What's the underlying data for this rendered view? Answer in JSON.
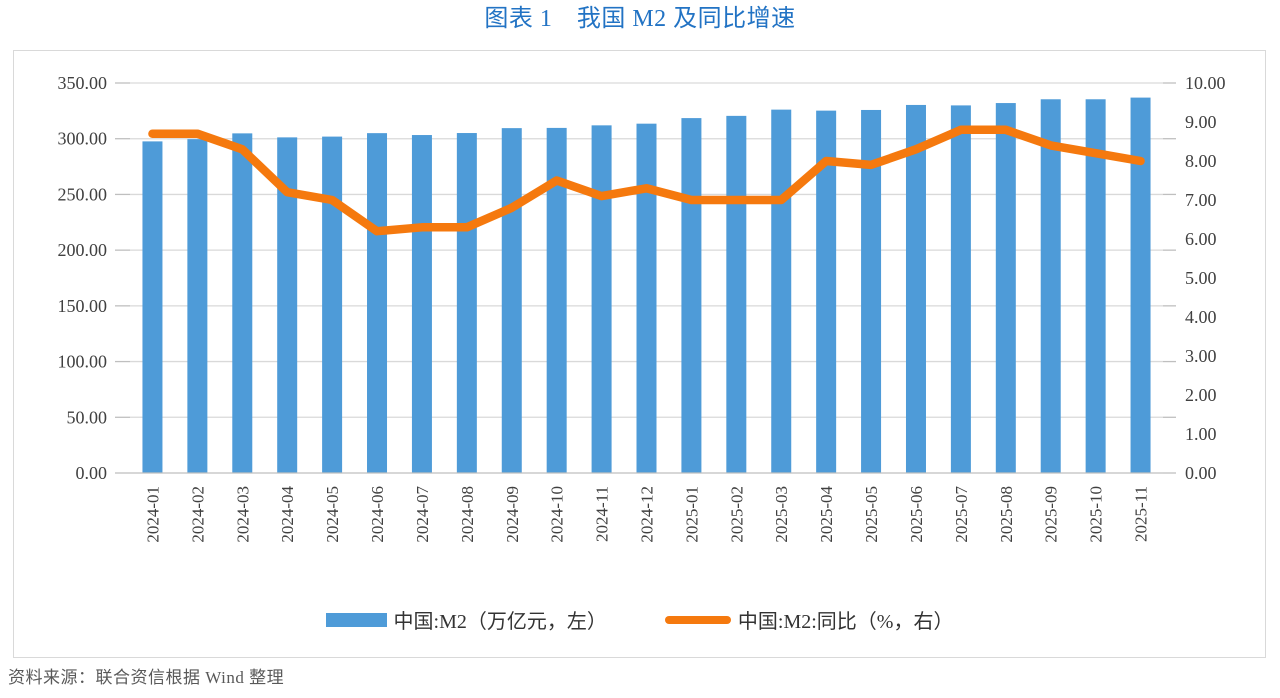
{
  "page": {
    "title": "图表 1　我国 M2 及同比增速",
    "source_note": "资料来源：联合资信根据 Wind 整理"
  },
  "colors": {
    "title_blue": "#2273c4",
    "bar_blue": "#4e9bd8",
    "line_orange": "#f5790e",
    "gridline": "#d9d9d9",
    "axis_line": "#bfbfbf",
    "tick_mark": "#bfbfbf",
    "tick_label": "#404040",
    "box_border": "#d9d9d9",
    "source_text": "#595959"
  },
  "chart_data": {
    "type": "bar",
    "subtype": "combo-bar-line-dual-axis",
    "title": "图表 1　我国 M2 及同比增速",
    "categories": [
      "2024-01",
      "2024-02",
      "2024-03",
      "2024-04",
      "2024-05",
      "2024-06",
      "2024-07",
      "2024-08",
      "2024-09",
      "2024-10",
      "2024-11",
      "2024-12",
      "2025-01",
      "2025-02",
      "2025-03",
      "2025-04",
      "2025-05",
      "2025-06",
      "2025-07",
      "2025-08",
      "2025-09",
      "2025-10",
      "2025-11"
    ],
    "series": [
      {
        "name": "中国:M2（万亿元，左）",
        "type": "bar",
        "axis": "left",
        "values": [
          297.6,
          299.6,
          304.8,
          301.2,
          301.9,
          305.0,
          303.3,
          305.1,
          309.5,
          309.7,
          312.0,
          313.5,
          318.5,
          320.5,
          326.1,
          325.2,
          325.8,
          330.3,
          329.9,
          332.0,
          335.4,
          335.4,
          336.9
        ]
      },
      {
        "name": "中国:M2:同比（%，右）",
        "type": "line",
        "axis": "right",
        "values": [
          8.7,
          8.7,
          8.3,
          7.2,
          7.0,
          6.2,
          6.3,
          6.3,
          6.8,
          7.5,
          7.1,
          7.3,
          7.0,
          7.0,
          7.0,
          8.0,
          7.9,
          8.3,
          8.8,
          8.8,
          8.4,
          8.2,
          8.0
        ]
      }
    ],
    "left_axis": {
      "min": 0,
      "max": 350,
      "step": 50,
      "tick_labels": [
        "350.00",
        "300.00",
        "250.00",
        "200.00",
        "150.00",
        "100.00",
        "50.00",
        "0.00"
      ]
    },
    "right_axis": {
      "min": 0,
      "max": 10,
      "step": 1,
      "tick_labels": [
        "10.00",
        "9.00",
        "8.00",
        "7.00",
        "6.00",
        "5.00",
        "4.00",
        "3.00",
        "2.00",
        "1.00",
        "0.00"
      ]
    },
    "grid": "horizontal-on",
    "legend_position": "bottom",
    "legend": [
      {
        "label": "中国:M2（万亿元，左）",
        "swatch": "bar"
      },
      {
        "label": "中国:M2:同比（%，右）",
        "swatch": "line"
      }
    ]
  }
}
